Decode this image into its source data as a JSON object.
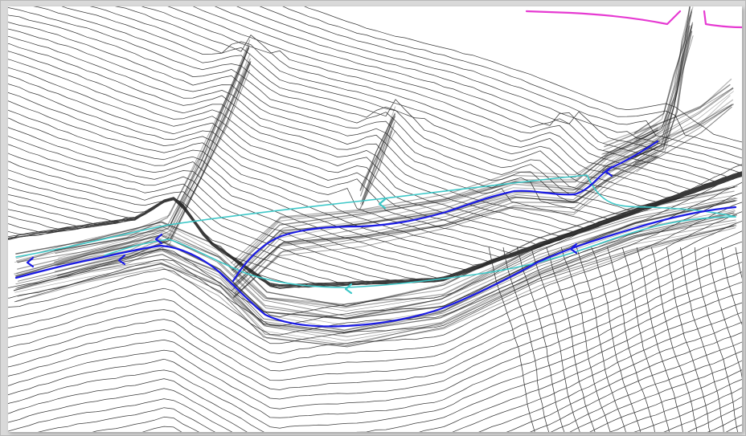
{
  "map": {
    "type": "topographic-contour-drainage",
    "colors": {
      "background": "#ffffff",
      "contour": "#3a3a3a",
      "contour_dense": "#1e1e1e",
      "stream_primary": "#1a1ae6",
      "stream_secondary": "#3ec8c8",
      "boundary": "#e63ad2",
      "frame": "#d9d9d9"
    },
    "layers": [
      "contour-lines",
      "drainage-channels",
      "flow-paths",
      "boundary-line",
      "flow-arrows"
    ],
    "icons": {
      "flow_arrow": "chevron-left-icon"
    }
  }
}
